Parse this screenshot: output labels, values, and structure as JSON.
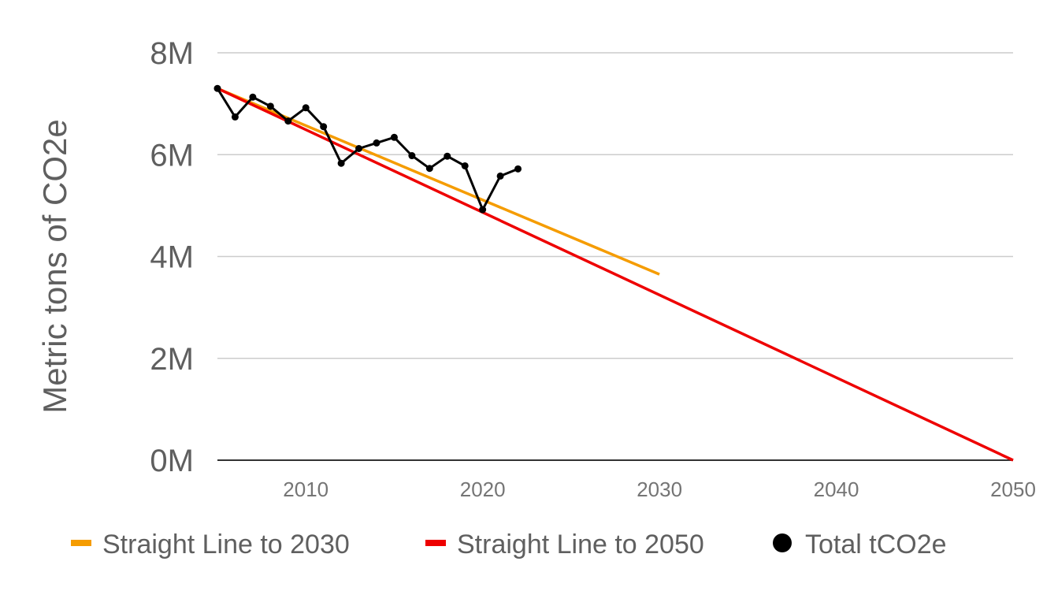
{
  "chart_data": {
    "type": "line",
    "ylabel": "Metric tons of CO2e",
    "xlabel": "",
    "xlim": [
      2005,
      2050
    ],
    "ylim": [
      0,
      8000000
    ],
    "xticks": [
      {
        "value": 2010,
        "label": "2010"
      },
      {
        "value": 2020,
        "label": "2020"
      },
      {
        "value": 2030,
        "label": "2030"
      },
      {
        "value": 2040,
        "label": "2040"
      },
      {
        "value": 2050,
        "label": "2050"
      }
    ],
    "yticks": [
      {
        "value": 0,
        "label": "0M"
      },
      {
        "value": 2000000,
        "label": "2M"
      },
      {
        "value": 4000000,
        "label": "4M"
      },
      {
        "value": 6000000,
        "label": "6M"
      },
      {
        "value": 8000000,
        "label": "8M"
      }
    ],
    "grid": true,
    "legend_position": "bottom",
    "series": [
      {
        "name": "Straight Line to 2030",
        "color": "#f59c00",
        "style": "line",
        "x": [
          2005,
          2030
        ],
        "y": [
          7300000,
          3650000
        ]
      },
      {
        "name": "Straight Line to 2050",
        "color": "#ee0000",
        "style": "line",
        "x": [
          2005,
          2050
        ],
        "y": [
          7300000,
          0
        ]
      },
      {
        "name": "Total tCO2e",
        "color": "#000000",
        "style": "line-markers",
        "x": [
          2005,
          2006,
          2007,
          2008,
          2009,
          2010,
          2011,
          2012,
          2013,
          2014,
          2015,
          2016,
          2017,
          2018,
          2019,
          2020,
          2021,
          2022
        ],
        "y": [
          7300000,
          6740000,
          7130000,
          6950000,
          6660000,
          6920000,
          6550000,
          5830000,
          6120000,
          6230000,
          6340000,
          5980000,
          5730000,
          5970000,
          5780000,
          4920000,
          5580000,
          5720000
        ]
      }
    ]
  }
}
